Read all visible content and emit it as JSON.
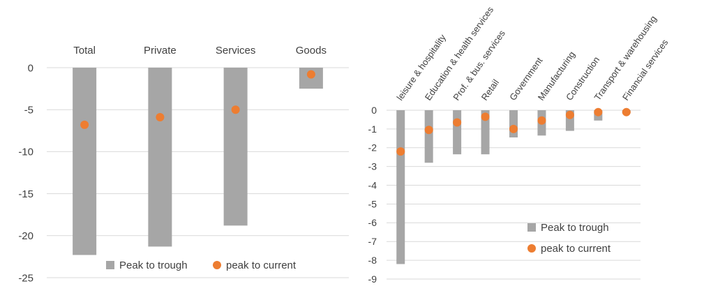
{
  "colors": {
    "bar": "#a6a6a6",
    "dot": "#ed7d31",
    "grid": "#d9d9d9",
    "text": "#404040"
  },
  "chart_data": [
    {
      "type": "bar",
      "categories": [
        "Total",
        "Private",
        "Services",
        "Goods"
      ],
      "series": [
        {
          "name": "Peak to trough",
          "marker": "bar",
          "values": [
            -22.3,
            -21.3,
            -18.8,
            -2.5
          ]
        },
        {
          "name": "peak to current",
          "marker": "dot",
          "values": [
            -6.8,
            -5.9,
            -5.0,
            -0.8
          ]
        }
      ],
      "ylim": [
        -25,
        0
      ],
      "yticks": [
        "0",
        "-5",
        "-10",
        "-15",
        "-20",
        "-25"
      ],
      "category_label_position": "top",
      "grid": true,
      "legend_position": "bottom"
    },
    {
      "type": "bar",
      "categories": [
        "leisure & hospitality",
        "Education & health services",
        "Prof. & bus. services",
        "Retail",
        "Government",
        "Manufacturing",
        "Construction",
        "Transport & warehousing",
        "Financial services"
      ],
      "series": [
        {
          "name": "Peak to trough",
          "marker": "bar",
          "values": [
            -8.2,
            -2.8,
            -2.35,
            -2.35,
            -1.45,
            -1.35,
            -1.1,
            -0.55,
            -0.15
          ]
        },
        {
          "name": "peak to current",
          "marker": "dot",
          "values": [
            -2.2,
            -1.05,
            -0.65,
            -0.35,
            -1.0,
            -0.55,
            -0.25,
            -0.1,
            -0.1
          ]
        }
      ],
      "ylim": [
        -9,
        0
      ],
      "yticks": [
        "0",
        "-1",
        "-2",
        "-3",
        "-4",
        "-5",
        "-6",
        "-7",
        "-8",
        "-9"
      ],
      "category_label_position": "top-rotated",
      "grid": true,
      "legend_position": "lower-right"
    }
  ]
}
